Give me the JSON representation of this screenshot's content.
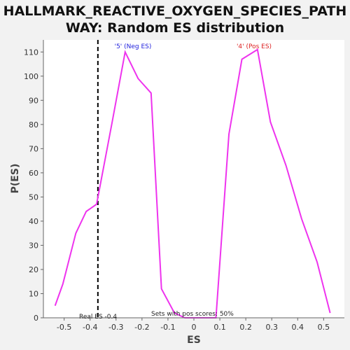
{
  "chart_data": {
    "type": "line",
    "title_line1": "HALLMARK_REACTIVE_OXYGEN_SPECIES_PATH",
    "title_line2": "WAY: Random ES distribution",
    "xlabel": "ES",
    "ylabel": "P(ES)",
    "xlim": [
      -0.58,
      0.58
    ],
    "ylim": [
      0,
      115
    ],
    "x_ticks": [
      -0.5,
      -0.4,
      -0.3,
      -0.2,
      -0.1,
      0.0,
      0.1,
      0.2,
      0.3,
      0.4,
      0.5
    ],
    "x_tick_labels": [
      "-0.5",
      "-0.4",
      "-0.3",
      "-0.2",
      "-0.1",
      "0",
      "0.1",
      "0.2",
      "0.3",
      "0.4",
      "0.5"
    ],
    "y_ticks": [
      0,
      10,
      20,
      30,
      40,
      50,
      60,
      70,
      80,
      90,
      100,
      110
    ],
    "y_tick_labels": [
      "0",
      "10",
      "20",
      "30",
      "40",
      "50",
      "60",
      "70",
      "80",
      "90",
      "100",
      "110"
    ],
    "series": [
      {
        "color": "#ee33ee",
        "x": [
          -0.535,
          -0.505,
          -0.455,
          -0.415,
          -0.375,
          -0.315,
          -0.265,
          -0.215,
          -0.165,
          -0.125,
          -0.075,
          -0.035,
          0.005,
          0.045,
          0.085,
          0.135,
          0.185,
          0.245,
          0.295,
          0.355,
          0.415,
          0.475,
          0.525
        ],
        "y": [
          5,
          14,
          35,
          44,
          47,
          81,
          110,
          99,
          93,
          12,
          2,
          0,
          0,
          0,
          0,
          76,
          107,
          111,
          81,
          63,
          41,
          23,
          2
        ]
      }
    ],
    "real_es": -0.37,
    "annotations": {
      "neg_label": "'5' (Neg ES)",
      "pos_label": "'4' (Pos ES)",
      "real_es_label": "Real ES -0.4",
      "pos_scores_label": "Sets with pos scores: 50%"
    },
    "colors": {
      "neg": "#2222dd",
      "pos": "#dd2222",
      "line": "#ee33ee",
      "plot_bg": "#ffffff",
      "page_bg": "#f2f2f2"
    },
    "grid": false
  }
}
